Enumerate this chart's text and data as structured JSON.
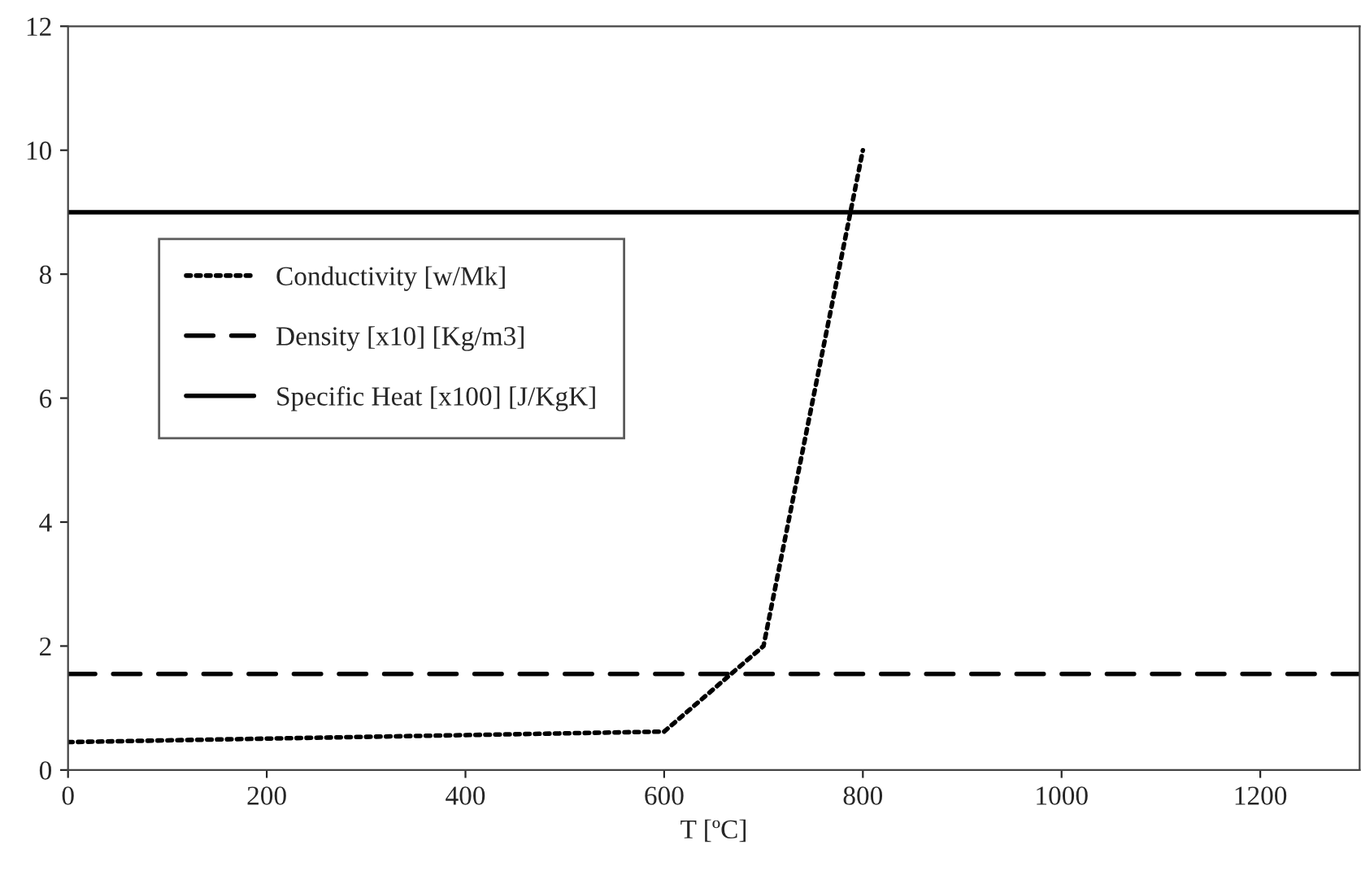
{
  "chart_data": {
    "type": "line",
    "xlabel": "T [ºC]",
    "xlim": [
      0,
      1300
    ],
    "xticks": [
      0,
      200,
      400,
      600,
      800,
      1000,
      1200
    ],
    "ylim": [
      0,
      12
    ],
    "yticks": [
      0,
      2,
      4,
      6,
      8,
      10,
      12
    ],
    "grid": false,
    "legend": "left",
    "marker": "none",
    "series": [
      {
        "name": "Conductivity [w/Mk]",
        "color": "#000000",
        "line_style": "dotted",
        "x": [
          0,
          600,
          700,
          800
        ],
        "values": [
          0.45,
          0.62,
          2.0,
          10.0
        ]
      },
      {
        "name": "Density [x10] [Kg/m3]",
        "color": "#000000",
        "line_style": "dashed",
        "x": [
          0,
          1300
        ],
        "values": [
          1.55,
          1.55
        ]
      },
      {
        "name": "Specific Heat [x100] [J/KgK]",
        "color": "#000000",
        "line_style": "solid",
        "x": [
          0,
          1300
        ],
        "values": [
          9,
          9
        ]
      }
    ]
  }
}
